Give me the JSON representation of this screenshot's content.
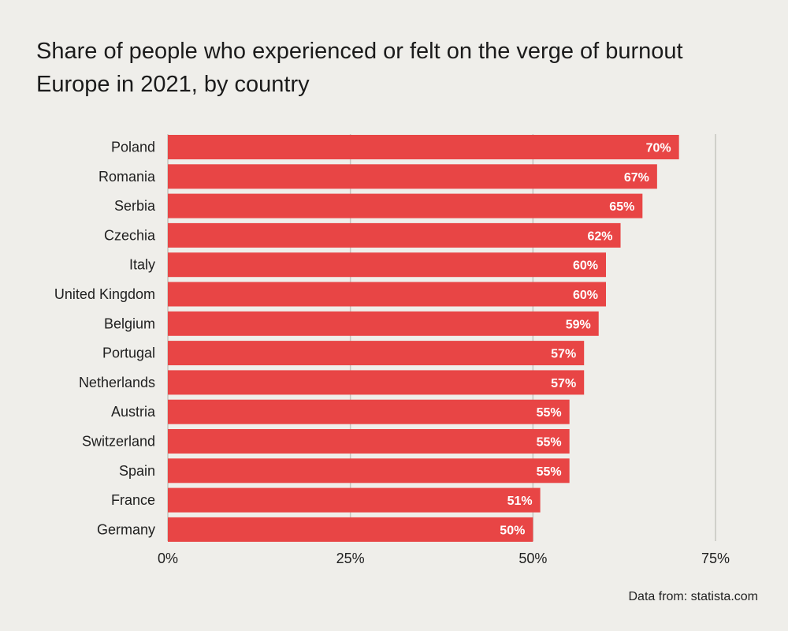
{
  "chart_data": {
    "type": "bar",
    "orientation": "horizontal",
    "title": "Share of people who experienced or felt on the verge of burnout",
    "subtitle": "Europe in 2021, by country",
    "categories": [
      "Poland",
      "Romania",
      "Serbia",
      "Czechia",
      "Italy",
      "United Kingdom",
      "Belgium",
      "Portugal",
      "Netherlands",
      "Austria",
      "Switzerland",
      "Spain",
      "France",
      "Germany"
    ],
    "values": [
      70,
      67,
      65,
      62,
      60,
      60,
      59,
      57,
      57,
      55,
      55,
      55,
      51,
      50
    ],
    "value_labels": [
      "70%",
      "67%",
      "65%",
      "62%",
      "60%",
      "60%",
      "59%",
      "57%",
      "57%",
      "55%",
      "55%",
      "55%",
      "51%",
      "50%"
    ],
    "xlim": [
      0,
      75
    ],
    "xticks": [
      0,
      25,
      50,
      75
    ],
    "xtick_labels": [
      "0%",
      "25%",
      "50%",
      "75%"
    ],
    "xlabel": "",
    "ylabel": "",
    "grid": true,
    "colors": {
      "bar": "#e84545",
      "bar_label": "#ffffff",
      "grid": "#c6c5c0",
      "text": "#1f1f1f"
    }
  },
  "footer": {
    "source": "Data from: statista.com"
  }
}
